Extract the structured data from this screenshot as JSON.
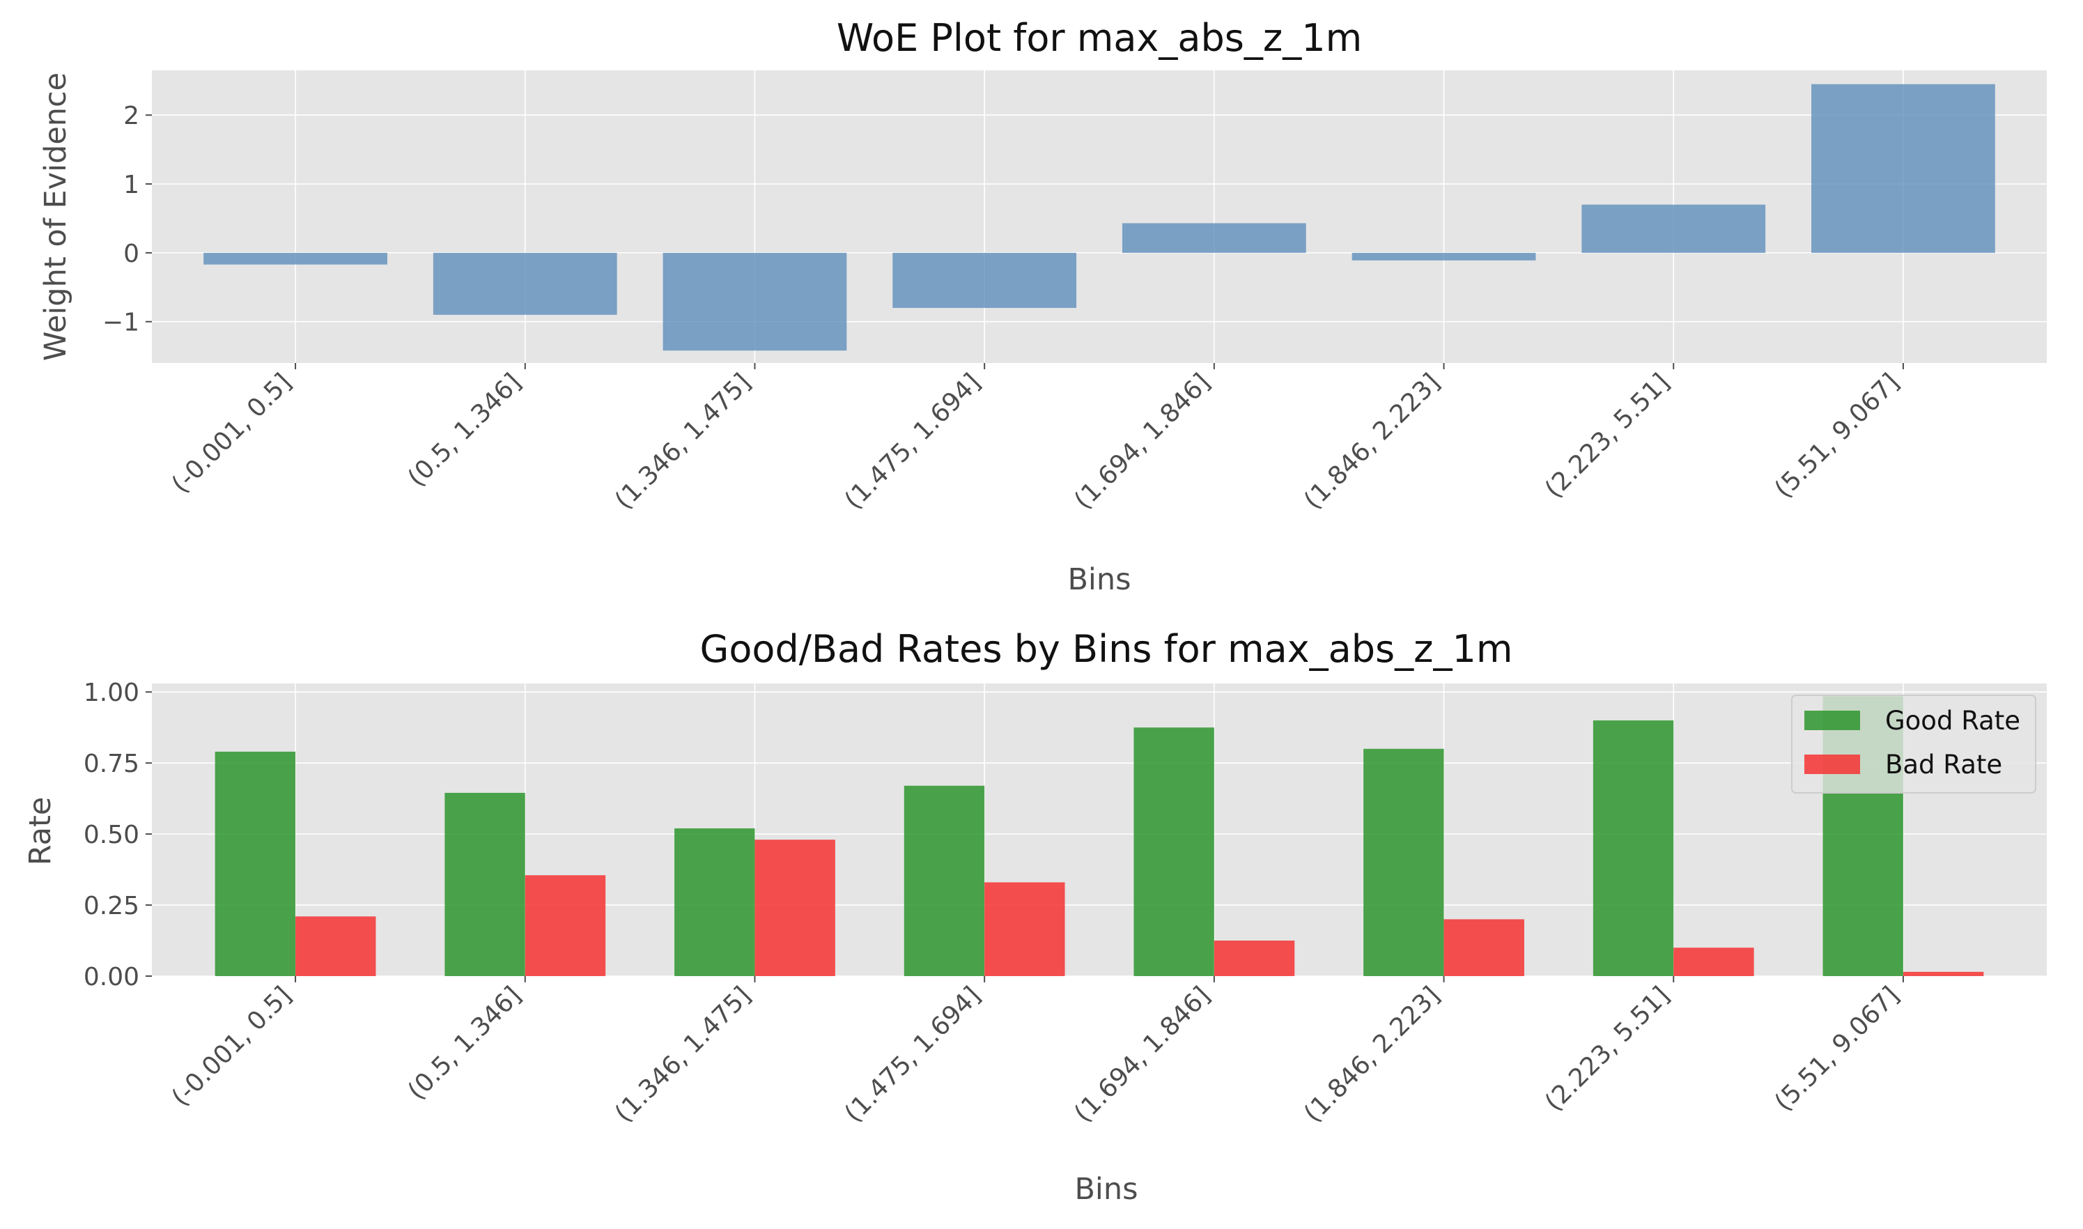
{
  "colors": {
    "figure_bg": "#ffffff",
    "axes_bg": "#e5e5e5",
    "grid": "#ffffff",
    "woe_bar": "#5f8fbc",
    "good_bar": "#2e962e",
    "bad_bar": "#f63333",
    "text": "#4d4d4d"
  },
  "chart_data": [
    {
      "type": "bar",
      "title": "WoE Plot for max_abs_z_1m",
      "xlabel": "Bins",
      "ylabel": "Weight of Evidence",
      "categories": [
        "(-0.001, 0.5]",
        "(0.5, 1.346]",
        "(1.346, 1.475]",
        "(1.475, 1.694]",
        "(1.694, 1.846]",
        "(1.846, 2.223]",
        "(2.223, 5.51]",
        "(5.51, 9.067]"
      ],
      "values": [
        -0.17,
        -0.9,
        -1.42,
        -0.8,
        0.43,
        -0.11,
        0.7,
        2.45
      ],
      "ylim": [
        -1.6,
        2.65
      ],
      "yticks": [
        -1,
        0,
        1,
        2
      ],
      "ytick_labels": [
        "−1",
        "0",
        "1",
        "2"
      ],
      "grid": true
    },
    {
      "type": "bar",
      "title": "Good/Bad Rates by Bins for max_abs_z_1m",
      "xlabel": "Bins",
      "ylabel": "Rate",
      "categories": [
        "(-0.001, 0.5]",
        "(0.5, 1.346]",
        "(1.346, 1.475]",
        "(1.475, 1.694]",
        "(1.694, 1.846]",
        "(1.846, 2.223]",
        "(2.223, 5.51]",
        "(5.51, 9.067]"
      ],
      "series": [
        {
          "name": "Good Rate",
          "values": [
            0.79,
            0.645,
            0.52,
            0.67,
            0.875,
            0.8,
            0.9,
            0.985
          ]
        },
        {
          "name": "Bad Rate",
          "values": [
            0.21,
            0.355,
            0.48,
            0.33,
            0.125,
            0.2,
            0.1,
            0.015
          ]
        }
      ],
      "ylim": [
        0,
        1.03
      ],
      "yticks": [
        0,
        0.25,
        0.5,
        0.75,
        1.0
      ],
      "ytick_labels": [
        "0.00",
        "0.25",
        "0.50",
        "0.75",
        "1.00"
      ],
      "legend": "top-right",
      "grid": true
    }
  ]
}
